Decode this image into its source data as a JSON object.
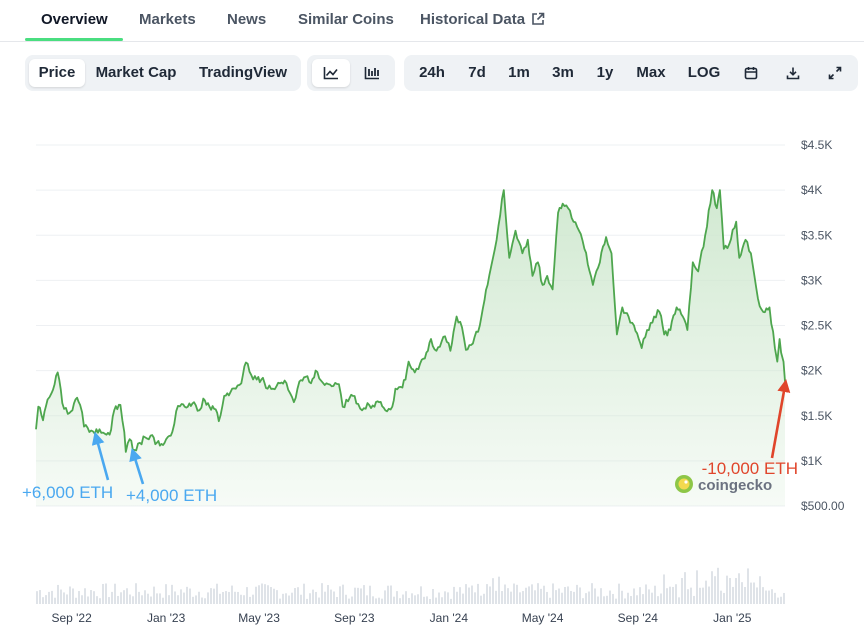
{
  "tabs": [
    {
      "label": "Overview",
      "active": true
    },
    {
      "label": "Markets"
    },
    {
      "label": "News"
    },
    {
      "label": "Similar Coins"
    },
    {
      "label": "Historical Data",
      "external": true
    }
  ],
  "chart_controls": {
    "series_types": [
      {
        "label": "Price",
        "active": true
      },
      {
        "label": "Market Cap"
      },
      {
        "label": "TradingView"
      }
    ],
    "chart_styles": [
      {
        "icon": "line-chart-icon",
        "active": true
      },
      {
        "icon": "candlestick-icon"
      }
    ],
    "ranges": [
      "24h",
      "7d",
      "1m",
      "3m",
      "1y",
      "Max",
      "LOG"
    ],
    "tools": [
      "calendar-icon",
      "download-icon",
      "fullscreen-icon"
    ]
  },
  "watermark": "coingecko",
  "colors": {
    "line": "#4ea64e",
    "area": "#dcefdc",
    "volume": "#dfe3e8",
    "grid": "#eef0f3",
    "accent_tab": "#4ade80",
    "annotation_buy": "#4aa8f0",
    "annotation_sell": "#e0452b"
  },
  "chart_data": {
    "type": "area",
    "y_ticks": [
      {
        "value": 500,
        "label": "$500.00"
      },
      {
        "value": 1000,
        "label": "$1K"
      },
      {
        "value": 1500,
        "label": "$1.5K"
      },
      {
        "value": 2000,
        "label": "$2K"
      },
      {
        "value": 2500,
        "label": "$2.5K"
      },
      {
        "value": 3000,
        "label": "$3K"
      },
      {
        "value": 3500,
        "label": "$3.5K"
      },
      {
        "value": 4000,
        "label": "$4K"
      },
      {
        "value": 4500,
        "label": "$4.5K"
      }
    ],
    "x_ticks": [
      {
        "date": "2022-09-01",
        "label": "Sep '22"
      },
      {
        "date": "2023-01-01",
        "label": "Jan '23"
      },
      {
        "date": "2023-05-01",
        "label": "May '23"
      },
      {
        "date": "2023-09-01",
        "label": "Sep '23"
      },
      {
        "date": "2024-01-01",
        "label": "Jan '24"
      },
      {
        "date": "2024-05-01",
        "label": "May '24"
      },
      {
        "date": "2024-09-01",
        "label": "Sep '24"
      },
      {
        "date": "2025-01-01",
        "label": "Jan '25"
      }
    ],
    "x_range": [
      "2022-07-17",
      "2025-03-10"
    ],
    "y_range": [
      500,
      4500
    ],
    "grid": true,
    "series": [
      {
        "points": [
          [
            "2022-07-17",
            1350
          ],
          [
            "2022-07-20",
            1600
          ],
          [
            "2022-07-26",
            1450
          ],
          [
            "2022-08-01",
            1680
          ],
          [
            "2022-08-06",
            1750
          ],
          [
            "2022-08-10",
            1850
          ],
          [
            "2022-08-14",
            1980
          ],
          [
            "2022-08-20",
            1640
          ],
          [
            "2022-08-27",
            1520
          ],
          [
            "2022-09-02",
            1560
          ],
          [
            "2022-09-08",
            1700
          ],
          [
            "2022-09-12",
            1620
          ],
          [
            "2022-09-17",
            1380
          ],
          [
            "2022-09-24",
            1320
          ],
          [
            "2022-10-01",
            1300
          ],
          [
            "2022-10-07",
            1350
          ],
          [
            "2022-10-14",
            1300
          ],
          [
            "2022-10-20",
            1290
          ],
          [
            "2022-10-26",
            1560
          ],
          [
            "2022-11-03",
            1620
          ],
          [
            "2022-11-08",
            1320
          ],
          [
            "2022-11-10",
            1100
          ],
          [
            "2022-11-15",
            1240
          ],
          [
            "2022-11-21",
            1120
          ],
          [
            "2022-11-28",
            1200
          ],
          [
            "2022-12-05",
            1260
          ],
          [
            "2022-12-12",
            1280
          ],
          [
            "2022-12-20",
            1200
          ],
          [
            "2022-12-30",
            1200
          ],
          [
            "2023-01-09",
            1320
          ],
          [
            "2023-01-14",
            1550
          ],
          [
            "2023-01-21",
            1630
          ],
          [
            "2023-01-29",
            1600
          ],
          [
            "2023-02-06",
            1650
          ],
          [
            "2023-02-13",
            1560
          ],
          [
            "2023-02-18",
            1690
          ],
          [
            "2023-02-26",
            1600
          ],
          [
            "2023-03-06",
            1570
          ],
          [
            "2023-03-10",
            1440
          ],
          [
            "2023-03-17",
            1720
          ],
          [
            "2023-03-25",
            1760
          ],
          [
            "2023-04-01",
            1800
          ],
          [
            "2023-04-08",
            1860
          ],
          [
            "2023-04-14",
            2090
          ],
          [
            "2023-04-21",
            1950
          ],
          [
            "2023-04-28",
            1900
          ],
          [
            "2023-05-06",
            1920
          ],
          [
            "2023-05-12",
            1800
          ],
          [
            "2023-05-19",
            1800
          ],
          [
            "2023-05-28",
            1860
          ],
          [
            "2023-06-03",
            1890
          ],
          [
            "2023-06-10",
            1750
          ],
          [
            "2023-06-15",
            1650
          ],
          [
            "2023-06-22",
            1880
          ],
          [
            "2023-06-30",
            1930
          ],
          [
            "2023-07-07",
            1860
          ],
          [
            "2023-07-13",
            2000
          ],
          [
            "2023-07-20",
            1890
          ],
          [
            "2023-07-27",
            1860
          ],
          [
            "2023-08-05",
            1830
          ],
          [
            "2023-08-12",
            1850
          ],
          [
            "2023-08-17",
            1600
          ],
          [
            "2023-08-24",
            1660
          ],
          [
            "2023-08-30",
            1720
          ],
          [
            "2023-09-06",
            1630
          ],
          [
            "2023-09-11",
            1560
          ],
          [
            "2023-09-18",
            1640
          ],
          [
            "2023-09-27",
            1600
          ],
          [
            "2023-10-03",
            1650
          ],
          [
            "2023-10-11",
            1560
          ],
          [
            "2023-10-20",
            1600
          ],
          [
            "2023-10-24",
            1800
          ],
          [
            "2023-10-31",
            1820
          ],
          [
            "2023-11-06",
            1900
          ],
          [
            "2023-11-10",
            2100
          ],
          [
            "2023-11-18",
            1980
          ],
          [
            "2023-11-25",
            2080
          ],
          [
            "2023-12-03",
            2200
          ],
          [
            "2023-12-09",
            2350
          ],
          [
            "2023-12-16",
            2220
          ],
          [
            "2023-12-27",
            2380
          ],
          [
            "2024-01-03",
            2220
          ],
          [
            "2024-01-11",
            2600
          ],
          [
            "2024-01-18",
            2480
          ],
          [
            "2024-01-23",
            2230
          ],
          [
            "2024-02-01",
            2300
          ],
          [
            "2024-02-10",
            2500
          ],
          [
            "2024-02-20",
            2950
          ],
          [
            "2024-02-27",
            3250
          ],
          [
            "2024-03-05",
            3600
          ],
          [
            "2024-03-12",
            4000
          ],
          [
            "2024-03-19",
            3250
          ],
          [
            "2024-03-27",
            3550
          ],
          [
            "2024-04-05",
            3300
          ],
          [
            "2024-04-12",
            3450
          ],
          [
            "2024-04-18",
            3050
          ],
          [
            "2024-04-25",
            3200
          ],
          [
            "2024-05-01",
            2950
          ],
          [
            "2024-05-07",
            3050
          ],
          [
            "2024-05-14",
            2900
          ],
          [
            "2024-05-21",
            3750
          ],
          [
            "2024-05-27",
            3850
          ],
          [
            "2024-06-03",
            3800
          ],
          [
            "2024-06-10",
            3650
          ],
          [
            "2024-06-17",
            3550
          ],
          [
            "2024-06-24",
            3350
          ],
          [
            "2024-07-05",
            2950
          ],
          [
            "2024-07-14",
            3200
          ],
          [
            "2024-07-22",
            3480
          ],
          [
            "2024-07-29",
            3300
          ],
          [
            "2024-08-05",
            2400
          ],
          [
            "2024-08-12",
            2700
          ],
          [
            "2024-08-20",
            2600
          ],
          [
            "2024-08-27",
            2500
          ],
          [
            "2024-09-06",
            2250
          ],
          [
            "2024-09-13",
            2450
          ],
          [
            "2024-09-22",
            2600
          ],
          [
            "2024-09-29",
            2650
          ],
          [
            "2024-10-05",
            2400
          ],
          [
            "2024-10-13",
            2450
          ],
          [
            "2024-10-21",
            2700
          ],
          [
            "2024-10-29",
            2600
          ],
          [
            "2024-11-04",
            2450
          ],
          [
            "2024-11-11",
            3200
          ],
          [
            "2024-11-18",
            3100
          ],
          [
            "2024-11-27",
            3500
          ],
          [
            "2024-12-06",
            4000
          ],
          [
            "2024-12-12",
            3800
          ],
          [
            "2024-12-16",
            4000
          ],
          [
            "2024-12-21",
            3350
          ],
          [
            "2024-12-28",
            3400
          ],
          [
            "2025-01-06",
            3650
          ],
          [
            "2025-01-10",
            3250
          ],
          [
            "2025-01-18",
            3450
          ],
          [
            "2025-01-25",
            3300
          ],
          [
            "2025-02-03",
            2800
          ],
          [
            "2025-02-10",
            2650
          ],
          [
            "2025-02-18",
            2700
          ],
          [
            "2025-02-25",
            2250
          ],
          [
            "2025-02-28",
            2100
          ],
          [
            "2025-03-03",
            2350
          ],
          [
            "2025-03-05",
            2200
          ],
          [
            "2025-03-08",
            2100
          ],
          [
            "2025-03-10",
            1880
          ]
        ]
      }
    ],
    "volume_visible": true,
    "annotations": [
      {
        "text": "+6,000 ETH",
        "date": "2022-10-03",
        "price": 1300,
        "color": "#4aa8f0"
      },
      {
        "text": "+4,000 ETH",
        "date": "2022-11-20",
        "price": 1120,
        "color": "#4aa8f0"
      },
      {
        "text": "-10,000 ETH",
        "date": "2025-03-10",
        "price": 1880,
        "color": "#e0452b"
      }
    ]
  }
}
